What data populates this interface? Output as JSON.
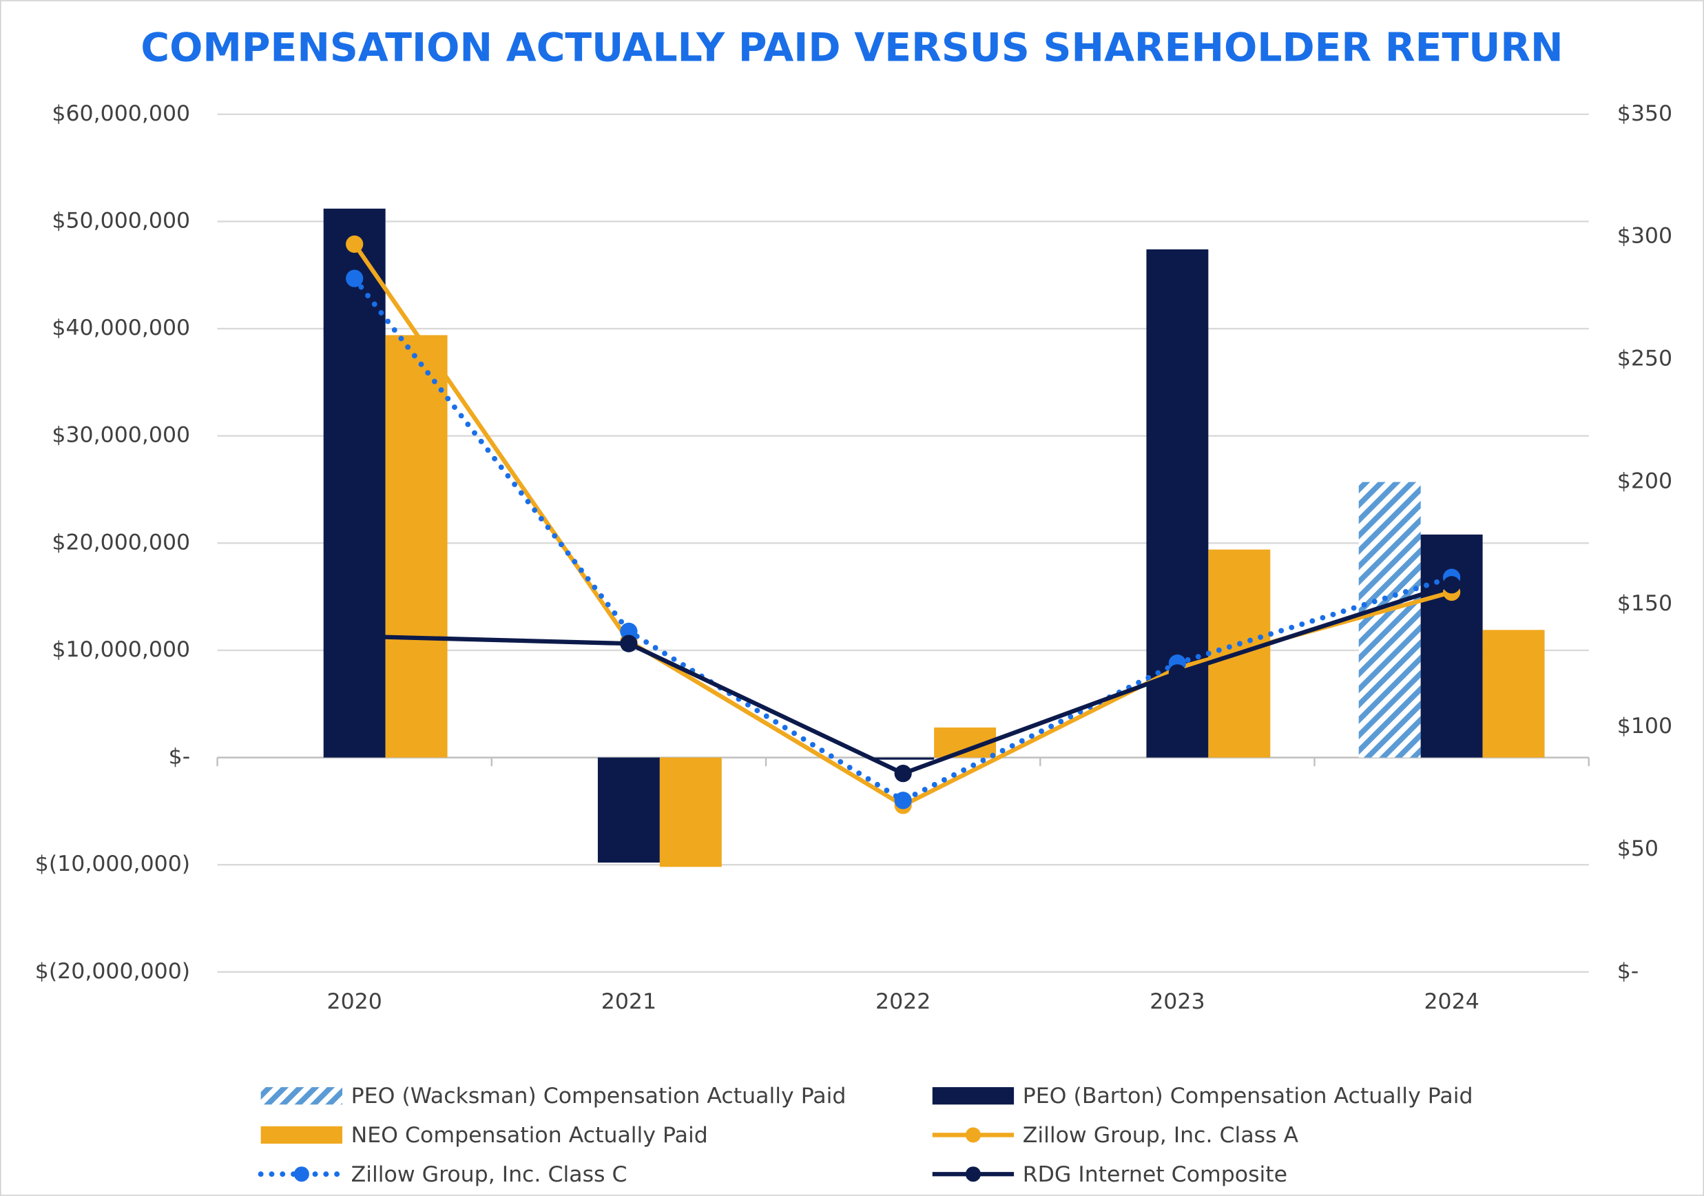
{
  "chart_data": {
    "type": "bar-line",
    "title": "COMPENSATION ACTUALLY PAID VERSUS SHAREHOLDER RETURN",
    "categories": [
      "2020",
      "2021",
      "2022",
      "2023",
      "2024"
    ],
    "ylim": [
      -20000000,
      60000000
    ],
    "yticks": [
      {
        "value": -20000000,
        "label": "$(20,000,000)"
      },
      {
        "value": -10000000,
        "label": "$(10,000,000)"
      },
      {
        "value": 0,
        "label": "$-"
      },
      {
        "value": 10000000,
        "label": "$10,000,000"
      },
      {
        "value": 20000000,
        "label": "$20,000,000"
      },
      {
        "value": 30000000,
        "label": "$30,000,000"
      },
      {
        "value": 40000000,
        "label": "$40,000,000"
      },
      {
        "value": 50000000,
        "label": "$50,000,000"
      },
      {
        "value": 60000000,
        "label": "$60,000,000"
      }
    ],
    "y2lim": [
      0,
      350
    ],
    "y2ticks": [
      {
        "value": 0,
        "label": "$-"
      },
      {
        "value": 50,
        "label": "$50"
      },
      {
        "value": 100,
        "label": "$100"
      },
      {
        "value": 150,
        "label": "$150"
      },
      {
        "value": 200,
        "label": "$200"
      },
      {
        "value": 250,
        "label": "$250"
      },
      {
        "value": 300,
        "label": "$300"
      },
      {
        "value": 350,
        "label": "$350"
      }
    ],
    "grid": true,
    "series": [
      {
        "name": "PEO (Wacksman) Compensation Actually Paid",
        "kind": "bar",
        "color": "#5b9bd5",
        "style": "hatched",
        "values": [
          null,
          null,
          null,
          null,
          25700000
        ]
      },
      {
        "name": "PEO (Barton) Compensation Actually Paid",
        "kind": "bar",
        "color": "#0c1a4b",
        "style": "solid",
        "values": [
          51200000,
          -9800000,
          -200000,
          47400000,
          20800000
        ]
      },
      {
        "name": "NEO Compensation Actually Paid",
        "kind": "bar",
        "color": "#f0a81e",
        "style": "solid",
        "values": [
          39400000,
          -10200000,
          2800000,
          19400000,
          11900000
        ]
      },
      {
        "name": "Zillow Group, Inc. Class A",
        "kind": "line",
        "axis": "y2",
        "color": "#f0a81e",
        "style": "solid",
        "values": [
          297,
          135,
          68,
          124,
          155
        ]
      },
      {
        "name": "Zillow Group, Inc. Class C",
        "kind": "line",
        "axis": "y2",
        "color": "#1a6fe8",
        "style": "dotted",
        "values": [
          283,
          139,
          70,
          126,
          161
        ]
      },
      {
        "name": "RDG Internet Composite",
        "kind": "line",
        "axis": "y2",
        "color": "#0c1a4b",
        "style": "solid",
        "values": [
          137,
          134,
          81,
          122,
          158
        ]
      }
    ]
  }
}
